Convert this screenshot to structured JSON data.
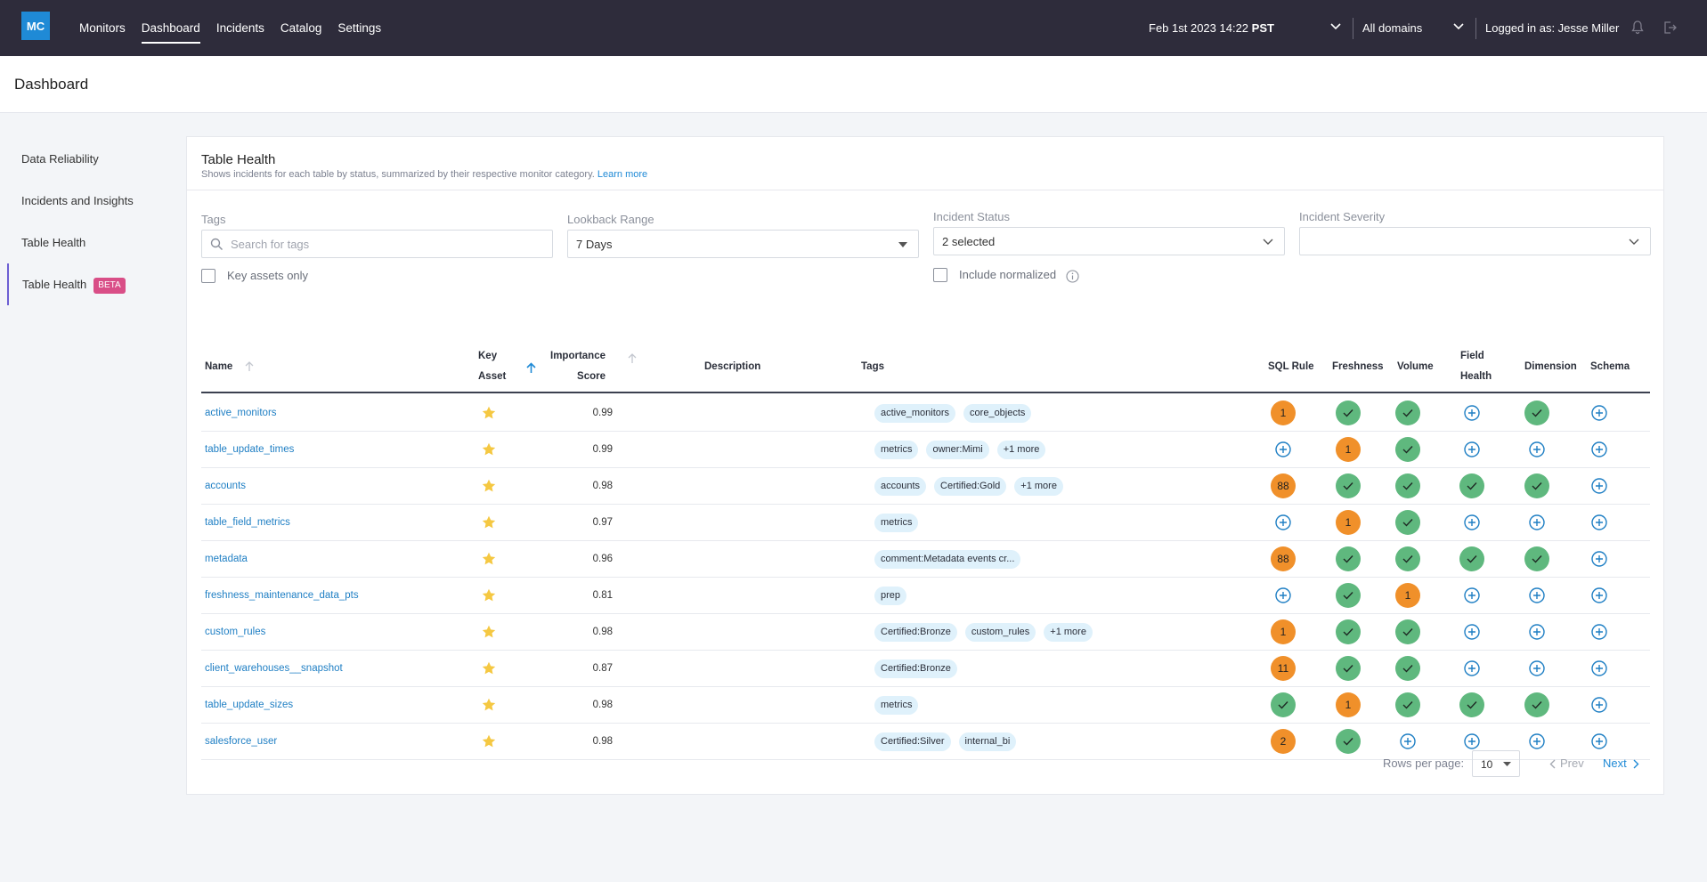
{
  "app": {
    "logo": "MC",
    "nav": [
      "Monitors",
      "Dashboard",
      "Incidents",
      "Catalog",
      "Settings"
    ],
    "date_select": "Feb 1st 2023 14:22",
    "date_tz": "PST",
    "domain_select": "All domains",
    "user": "Logged in as: Jesse Miller"
  },
  "page_title": "Dashboard",
  "sidebar": {
    "items": [
      "Data Reliability",
      "Incidents and Insights",
      "Table Health",
      "Table Health"
    ],
    "beta_label": "BETA"
  },
  "card": {
    "title": "Table Health",
    "subtitle": "Shows incidents for each table by status, summarized by their respective monitor category.",
    "learn_more": "Learn more"
  },
  "filters": {
    "tags_label": "Tags",
    "tags_placeholder": "Search for tags",
    "key_assets_label": "Key assets only",
    "lookback_label": "Lookback Range",
    "lookback_value": "7 Days",
    "status_label": "Incident Status",
    "status_value": "2 selected",
    "include_normalized_label": "Include normalized",
    "severity_label": "Incident Severity",
    "severity_value": ""
  },
  "columns": {
    "name": "Name",
    "key_asset_1": "Key",
    "key_asset_2": "Asset",
    "importance_1": "Importance",
    "importance_2": "Score",
    "description": "Description",
    "tags": "Tags",
    "sql_rule": "SQL Rule",
    "freshness": "Freshness",
    "volume": "Volume",
    "field_health_1": "Field",
    "field_health_2": "Health",
    "dimension": "Dimension",
    "schema": "Schema"
  },
  "rows": [
    {
      "name": "active_monitors",
      "score": "0.99",
      "tags": [
        "active_monitors",
        "core_objects"
      ],
      "sql": "1",
      "freshness": "ok",
      "volume": "ok",
      "field": "add",
      "dimension": "ok",
      "schema": "add"
    },
    {
      "name": "table_update_times",
      "score": "0.99",
      "tags": [
        "metrics",
        "owner:Mimi",
        "+1 more"
      ],
      "sql": "add",
      "freshness": "1",
      "volume": "ok",
      "field": "add",
      "dimension": "add",
      "schema": "add"
    },
    {
      "name": "accounts",
      "score": "0.98",
      "tags": [
        "accounts",
        "Certified:Gold",
        "+1 more"
      ],
      "sql": "88",
      "freshness": "ok",
      "volume": "ok",
      "field": "ok",
      "dimension": "ok",
      "schema": "add"
    },
    {
      "name": "table_field_metrics",
      "score": "0.97",
      "tags": [
        "metrics"
      ],
      "sql": "add",
      "freshness": "1",
      "volume": "ok",
      "field": "add",
      "dimension": "add",
      "schema": "add"
    },
    {
      "name": "metadata",
      "score": "0.96",
      "tags": [
        "comment:Metadata events cr..."
      ],
      "sql": "88",
      "freshness": "ok",
      "volume": "ok",
      "field": "ok",
      "dimension": "ok",
      "schema": "add"
    },
    {
      "name": "freshness_maintenance_data_pts",
      "score": "0.81",
      "tags": [
        "prep"
      ],
      "sql": "add",
      "freshness": "ok",
      "volume": "1",
      "field": "add",
      "dimension": "add",
      "schema": "add"
    },
    {
      "name": "custom_rules",
      "score": "0.98",
      "tags": [
        "Certified:Bronze",
        "custom_rules",
        "+1 more"
      ],
      "sql": "1",
      "freshness": "ok",
      "volume": "ok",
      "field": "add",
      "dimension": "add",
      "schema": "add"
    },
    {
      "name": "client_warehouses__snapshot",
      "score": "0.87",
      "tags": [
        "Certified:Bronze"
      ],
      "sql": "11",
      "freshness": "ok",
      "volume": "ok",
      "field": "add",
      "dimension": "add",
      "schema": "add"
    },
    {
      "name": "table_update_sizes",
      "score": "0.98",
      "tags": [
        "metrics"
      ],
      "sql": "ok",
      "freshness": "1",
      "volume": "ok",
      "field": "ok",
      "dimension": "ok",
      "schema": "add"
    },
    {
      "name": "salesforce_user",
      "score": "0.98",
      "tags": [
        "Certified:Silver",
        "internal_bi"
      ],
      "sql": "2",
      "freshness": "ok",
      "volume": "add",
      "field": "add",
      "dimension": "add",
      "schema": "add"
    }
  ],
  "pagination": {
    "rows_per_page_label": "Rows per page:",
    "rows_per_page": "10",
    "prev": "Prev",
    "next": "Next"
  },
  "colors": {
    "nav_bg": "#2e2c3b",
    "accent": "#1f8ad6",
    "ok": "#5fb87e",
    "incident": "#f0902a",
    "beta": "#d94e87"
  }
}
